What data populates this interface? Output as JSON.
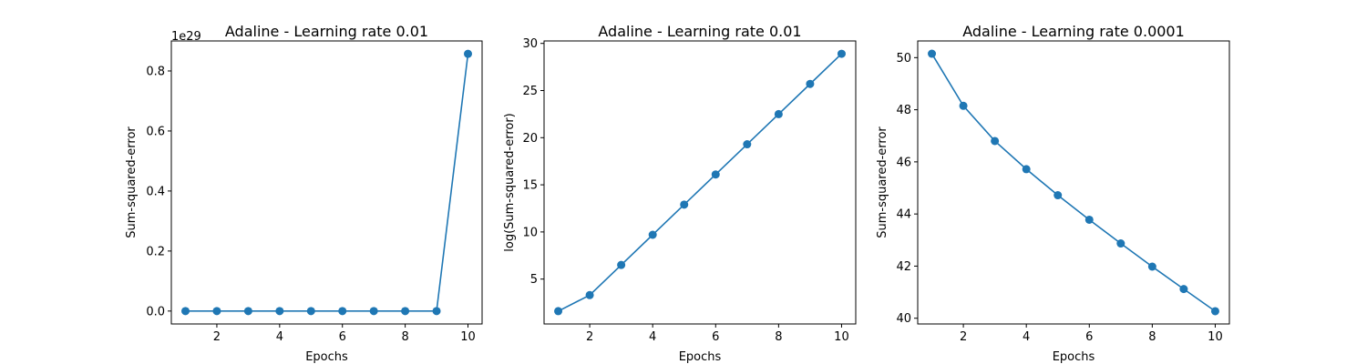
{
  "chart_data": [
    {
      "type": "line",
      "title": "Adaline - Learning rate 0.01",
      "xlabel": "Epochs",
      "ylabel": "Sum-squared-error",
      "offset_label": "1e29",
      "x": [
        1,
        2,
        3,
        4,
        5,
        6,
        7,
        8,
        9,
        10
      ],
      "series": [
        {
          "values": [
            0,
            0,
            0,
            0,
            0,
            0,
            0,
            0,
            0,
            0.857
          ],
          "color": "#1f77b4",
          "marker": "circle"
        }
      ],
      "xlim": [
        0.55,
        10.45
      ],
      "ylim": [
        -0.043,
        0.9
      ],
      "xticks": [
        2,
        4,
        6,
        8,
        10
      ],
      "xtick_labels": [
        "2",
        "4",
        "6",
        "8",
        "10"
      ],
      "yticks": [
        0,
        0.2,
        0.4,
        0.6,
        0.8
      ],
      "ytick_labels": [
        "0.0",
        "0.2",
        "0.4",
        "0.6",
        "0.8"
      ],
      "grid": false
    },
    {
      "type": "line",
      "title": "Adaline - Learning rate 0.01",
      "xlabel": "Epochs",
      "ylabel": "log(Sum-squared-error)",
      "x": [
        1,
        2,
        3,
        4,
        5,
        6,
        7,
        8,
        9,
        10
      ],
      "series": [
        {
          "values": [
            1.6,
            3.3,
            6.5,
            9.7,
            12.9,
            16.1,
            19.3,
            22.5,
            25.7,
            28.9
          ],
          "color": "#1f77b4",
          "marker": "circle"
        }
      ],
      "xlim": [
        0.55,
        10.45
      ],
      "ylim": [
        0.24,
        30.26
      ],
      "xticks": [
        2,
        4,
        6,
        8,
        10
      ],
      "xtick_labels": [
        "2",
        "4",
        "6",
        "8",
        "10"
      ],
      "yticks": [
        5,
        10,
        15,
        20,
        25,
        30
      ],
      "ytick_labels": [
        "5",
        "10",
        "15",
        "20",
        "25",
        "30"
      ],
      "grid": false
    },
    {
      "type": "line",
      "title": "Adaline - Learning rate 0.0001",
      "xlabel": "Epochs",
      "ylabel": "Sum-squared-error",
      "x": [
        1,
        2,
        3,
        4,
        5,
        6,
        7,
        8,
        9,
        10
      ],
      "series": [
        {
          "values": [
            50.15,
            48.15,
            46.8,
            45.72,
            44.72,
            43.78,
            42.87,
            41.98,
            41.12,
            40.27
          ],
          "color": "#1f77b4",
          "marker": "circle"
        }
      ],
      "xlim": [
        0.55,
        10.45
      ],
      "ylim": [
        39.78,
        50.64
      ],
      "xticks": [
        2,
        4,
        6,
        8,
        10
      ],
      "xtick_labels": [
        "2",
        "4",
        "6",
        "8",
        "10"
      ],
      "yticks": [
        40,
        42,
        44,
        46,
        48,
        50
      ],
      "ytick_labels": [
        "40",
        "42",
        "44",
        "46",
        "48",
        "50"
      ],
      "grid": false
    }
  ]
}
